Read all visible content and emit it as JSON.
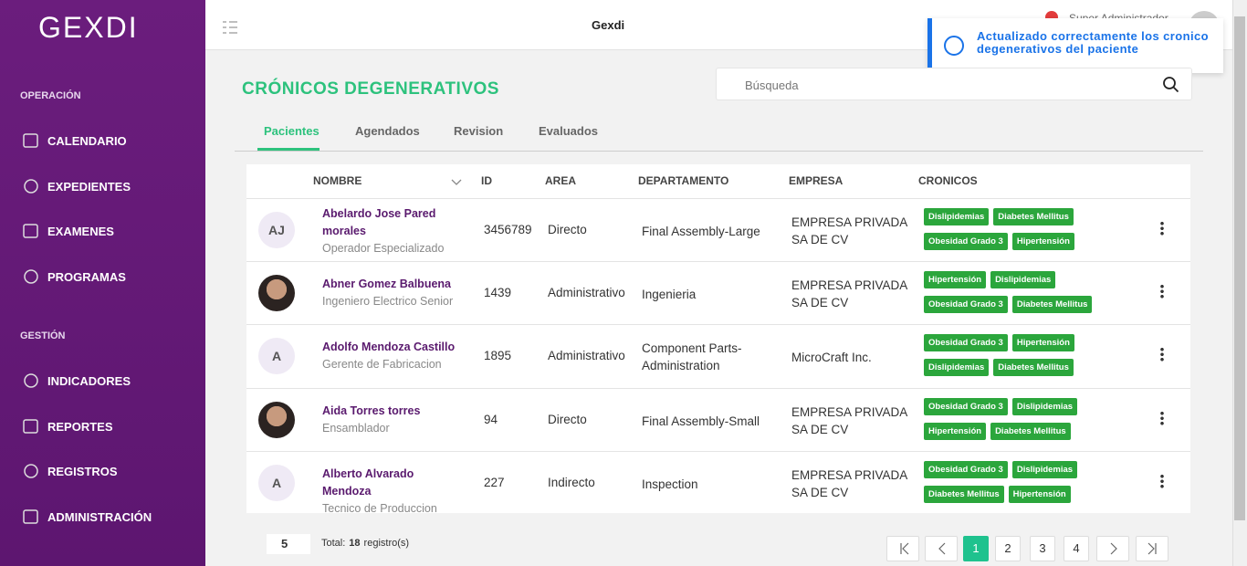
{
  "sidebar": {
    "logo": "GEXDI",
    "sections": [
      {
        "title": "OPERACIÓN",
        "items": [
          "CALENDARIO",
          "EXPEDIENTES",
          "EXAMENES",
          "PROGRAMAS"
        ]
      },
      {
        "title": "GESTIÓN",
        "items": [
          "INDICADORES",
          "REPORTES",
          "REGISTROS",
          "ADMINISTRACIÓN"
        ]
      }
    ]
  },
  "header": {
    "title": "Gexdi",
    "user": "Super Administrador"
  },
  "toast": {
    "message": "Actualizado correctamente los cronico degenerativos del paciente"
  },
  "page": {
    "title": "CRÓNICOS DEGENERATIVOS",
    "search_placeholder": "Búsqueda",
    "tabs": [
      "Pacientes",
      "Agendados",
      "Revision",
      "Evaluados"
    ]
  },
  "table": {
    "columns": [
      "NOMBRE",
      "ID",
      "AREA",
      "DEPARTAMENTO",
      "EMPRESA",
      "CRONICOS"
    ],
    "rows": [
      {
        "initials": "AJ",
        "name": "Abelardo Jose Pared morales",
        "role": "Operador Especializado",
        "id": 3456789,
        "area": "Directo",
        "department": "Final Assembly-Large",
        "company": "EMPRESA PRIVADA SA DE CV",
        "chronic": [
          "Dislipidemias",
          "Diabetes Mellitus",
          "Obesidad Grado 3",
          "Hipertensión"
        ]
      },
      {
        "name": "Abner Gomez Balbuena",
        "role": "Ingeniero Electrico Senior",
        "id": 1439,
        "area": "Administrativo",
        "department": "Ingenieria",
        "company": "EMPRESA PRIVADA SA DE CV",
        "chronic": [
          "Hipertensión",
          "Dislipidemias",
          "Obesidad Grado 3",
          "Diabetes Mellitus"
        ]
      },
      {
        "initials": "A",
        "name": "Adolfo Mendoza Castillo",
        "role": "Gerente de Fabricacion",
        "id": 1895,
        "area": "Administrativo",
        "department": "Component Parts-Administration",
        "company": "MicroCraft Inc.",
        "chronic": [
          "Obesidad Grado 3",
          "Hipertensión",
          "Dislipidemias",
          "Diabetes Mellitus"
        ]
      },
      {
        "name": "Aida Torres torres",
        "role": "Ensamblador",
        "id": 94,
        "area": "Directo",
        "department": "Final Assembly-Small",
        "company": "EMPRESA PRIVADA SA DE CV",
        "chronic": [
          "Obesidad Grado 3",
          "Dislipidemias",
          "Hipertensión",
          "Diabetes Mellitus"
        ]
      },
      {
        "initials": "A",
        "name": "Alberto Alvarado Mendoza",
        "role": "Tecnico de Produccion",
        "id": 227,
        "area": "Indirecto",
        "department": "Inspection",
        "company": "EMPRESA PRIVADA SA DE CV",
        "chronic": [
          "Obesidad Grado 3",
          "Dislipidemias",
          "Diabetes Mellitus",
          "Hipertensión"
        ]
      }
    ]
  },
  "pagination": {
    "page_size": "5",
    "total_label": "Total:",
    "total": 18,
    "total_unit": "registro(s)",
    "pages": [
      1,
      2,
      3,
      4
    ]
  }
}
